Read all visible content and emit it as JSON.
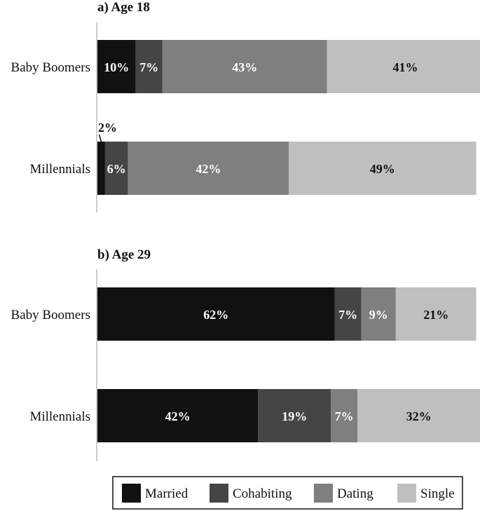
{
  "chart_data": {
    "type": "bar",
    "orientation": "horizontal-stacked-100",
    "legend": {
      "placement": "bottom",
      "entries": [
        "Married",
        "Cohabiting",
        "Dating",
        "Single"
      ]
    },
    "colors": {
      "Married": "#111111",
      "Cohabiting": "#454545",
      "Dating": "#7f7f7f",
      "Single": "#bfbfbf"
    },
    "label_colors": {
      "Married": "#ffffff",
      "Cohabiting": "#ffffff",
      "Dating": "#ffffff",
      "Single": "#111111"
    },
    "panels": [
      {
        "title": "a) Age 18",
        "categories": [
          "Baby Boomers",
          "Millennials"
        ],
        "series": [
          {
            "name": "Married",
            "values": [
              10,
              2
            ]
          },
          {
            "name": "Cohabiting",
            "values": [
              7,
              6
            ]
          },
          {
            "name": "Dating",
            "values": [
              43,
              42
            ]
          },
          {
            "name": "Single",
            "values": [
              41,
              49
            ]
          }
        ],
        "labels": [
          [
            "10%",
            "7%",
            "43%",
            "41%"
          ],
          [
            "2%",
            "6%",
            "42%",
            "49%"
          ]
        ]
      },
      {
        "title": "b) Age 29",
        "categories": [
          "Baby Boomers",
          "Millennials"
        ],
        "series": [
          {
            "name": "Married",
            "values": [
              62,
              42
            ]
          },
          {
            "name": "Cohabiting",
            "values": [
              7,
              19
            ]
          },
          {
            "name": "Dating",
            "values": [
              9,
              7
            ]
          },
          {
            "name": "Single",
            "values": [
              21,
              32
            ]
          }
        ],
        "labels": [
          [
            "62%",
            "7%",
            "9%",
            "21%"
          ],
          [
            "42%",
            "19%",
            "7%",
            "32%"
          ]
        ]
      }
    ],
    "xlim": [
      0,
      100
    ],
    "grid": false
  }
}
